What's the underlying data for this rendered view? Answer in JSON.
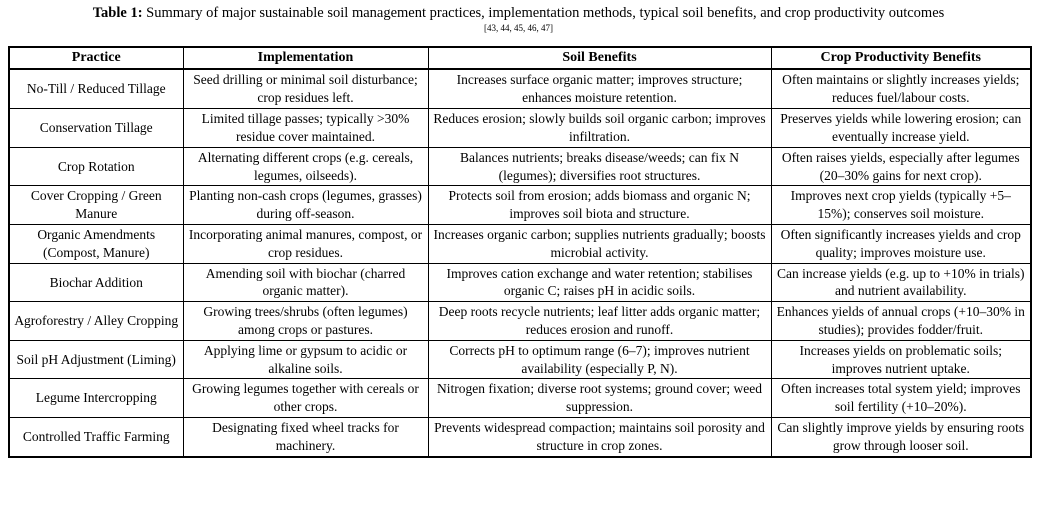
{
  "caption": {
    "label": "Table 1:",
    "text": " Summary of major sustainable soil management practices, implementation methods, typical soil benefits, and crop productivity outcomes",
    "citation": "[43, 44, 45, 46, 47]"
  },
  "table": {
    "headers": [
      "Practice",
      "Implementation",
      "Soil Benefits",
      "Crop Productivity Benefits"
    ],
    "rows": [
      {
        "practice": "No-Till / Reduced Tillage",
        "implementation": "Seed drilling or minimal soil disturbance; crop residues left.",
        "soil_benefits": "Increases surface organic matter; improves structure; enhances moisture retention.",
        "productivity": "Often maintains or slightly increases yields; reduces fuel/labour costs."
      },
      {
        "practice": "Conservation Tillage",
        "implementation": "Limited tillage passes; typically >30% residue cover maintained.",
        "soil_benefits": "Reduces erosion; slowly builds soil organic carbon; improves infiltration.",
        "productivity": "Preserves yields while lowering erosion; can eventually increase yield."
      },
      {
        "practice": "Crop Rotation",
        "implementation": "Alternating different crops (e.g. cereals, legumes, oilseeds).",
        "soil_benefits": "Balances nutrients; breaks disease/weeds; can fix N (legumes); diversifies root structures.",
        "productivity": "Often raises yields, especially after legumes (20–30% gains for next crop)."
      },
      {
        "practice": "Cover Cropping / Green Manure",
        "implementation": "Planting non-cash crops (legumes, grasses) during off-season.",
        "soil_benefits": "Protects soil from erosion; adds biomass and organic N; improves soil biota and structure.",
        "productivity": "Improves next crop yields (typically +5–15%); conserves soil moisture."
      },
      {
        "practice": "Organic Amendments (Compost, Manure)",
        "implementation": "Incorporating animal manures, compost, or crop residues.",
        "soil_benefits": "Increases organic carbon; supplies nutrients gradually; boosts microbial activity.",
        "productivity": "Often significantly increases yields and crop quality; improves moisture use."
      },
      {
        "practice": "Biochar Addition",
        "implementation": "Amending soil with biochar (charred organic matter).",
        "soil_benefits": "Improves cation exchange and water retention; stabilises organic C; raises pH in acidic soils.",
        "productivity": "Can increase yields (e.g. up to +10% in trials) and nutrient availability."
      },
      {
        "practice": "Agroforestry / Alley Cropping",
        "implementation": "Growing trees/shrubs (often legumes) among crops or pastures.",
        "soil_benefits": "Deep roots recycle nutrients; leaf litter adds organic matter; reduces erosion and runoff.",
        "productivity": "Enhances yields of annual crops (+10–30% in studies); provides fodder/fruit."
      },
      {
        "practice": "Soil pH Adjustment (Liming)",
        "implementation": "Applying lime or gypsum to acidic or alkaline soils.",
        "soil_benefits": "Corrects pH to optimum range (6–7); improves nutrient availability (especially P, N).",
        "productivity": "Increases yields on problematic soils; improves nutrient uptake."
      },
      {
        "practice": "Legume Intercropping",
        "implementation": "Growing legumes together with cereals or other crops.",
        "soil_benefits": "Nitrogen fixation; diverse root systems; ground cover; weed suppression.",
        "productivity": "Often increases total system yield; improves soil fertility (+10–20%)."
      },
      {
        "practice": "Controlled Traffic Farming",
        "implementation": "Designating fixed wheel tracks for machinery.",
        "soil_benefits": "Prevents widespread compaction; maintains soil porosity and structure in crop zones.",
        "productivity": "Can slightly improve yields by ensuring roots grow through looser soil."
      }
    ]
  }
}
